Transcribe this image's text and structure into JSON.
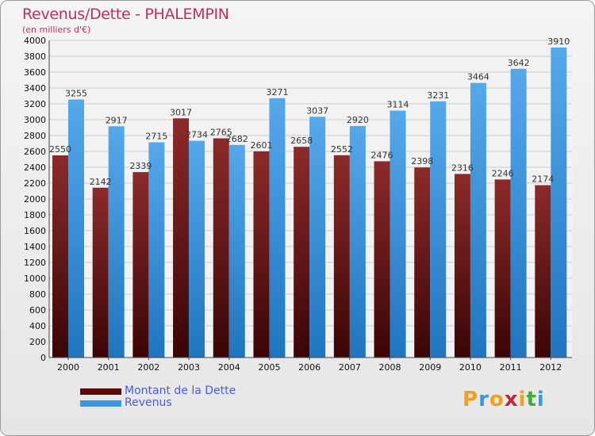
{
  "header": {
    "title": "Revenus/Dette - PHALEMPIN",
    "subtitle": "(en milliers d'€)"
  },
  "chart_data": {
    "type": "bar",
    "title": "Revenus/Dette - PHALEMPIN",
    "subtitle": "(en milliers d'€)",
    "categories": [
      "2000",
      "2001",
      "2002",
      "2003",
      "2004",
      "2005",
      "2006",
      "2007",
      "2008",
      "2009",
      "2010",
      "2011",
      "2012"
    ],
    "series": [
      {
        "name": "Montant de la Dette",
        "color": "#7a1818",
        "values": [
          2550,
          2142,
          2339,
          3017,
          2765,
          2601,
          2658,
          2552,
          2476,
          2398,
          2316,
          2246,
          2174
        ]
      },
      {
        "name": "Revenus",
        "color": "#3a97e0",
        "values": [
          3255,
          2917,
          2715,
          2734,
          2682,
          3271,
          3037,
          2920,
          3114,
          3231,
          3464,
          3642,
          3910
        ]
      }
    ],
    "ylim": [
      0,
      4000
    ],
    "ytick_step": 200,
    "grid": true,
    "legend_position": "bottom-left"
  },
  "legend": {
    "items": [
      {
        "label": "Montant de la Dette",
        "color": "#5a0a0a"
      },
      {
        "label": "Revenus",
        "color": "#3a97e0"
      }
    ]
  },
  "logo": {
    "letters": [
      "P",
      "r",
      "o",
      "x",
      "i",
      "t",
      "i"
    ],
    "colors": [
      "#f0a020",
      "#2f9ee0",
      "#f0a020",
      "#c02838",
      "#f0a020",
      "#44a83c",
      "#2f9ee0"
    ]
  }
}
